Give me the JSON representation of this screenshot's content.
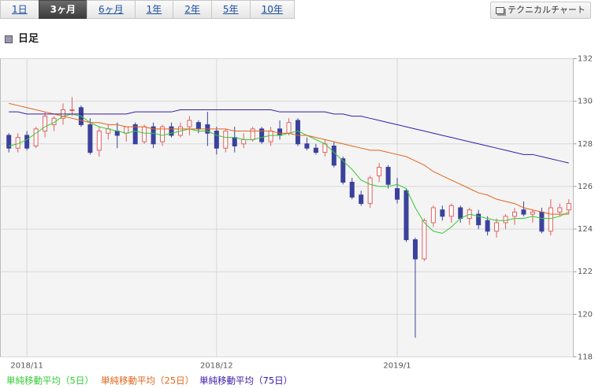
{
  "tabs": [
    {
      "label": "1日"
    },
    {
      "label": "3ヶ月",
      "active": true
    },
    {
      "label": "6ヶ月"
    },
    {
      "label": "1年"
    },
    {
      "label": "2年"
    },
    {
      "label": "5年"
    },
    {
      "label": "10年"
    }
  ],
  "button": "テクニカルチャート",
  "section_title": "日足",
  "chart_data": {
    "type": "candlestick",
    "categories": [
      null,
      null,
      "2018/11",
      null,
      null,
      null,
      null,
      null,
      null,
      null,
      null,
      null,
      null,
      null,
      null,
      null,
      null,
      null,
      null,
      null,
      null,
      null,
      null,
      "2018/12",
      null,
      null,
      null,
      null,
      null,
      null,
      null,
      null,
      null,
      null,
      null,
      null,
      null,
      null,
      null,
      null,
      null,
      null,
      null,
      "2019/1",
      null,
      null,
      null,
      null,
      null,
      null,
      null,
      null,
      null,
      null,
      null,
      null,
      null,
      null,
      null,
      null,
      null,
      null,
      null
    ],
    "open": [
      128.4,
      127.8,
      128.4,
      127.9,
      128.6,
      128.9,
      129.2,
      129.6,
      129.7,
      128.9,
      127.7,
      128.5,
      128.6,
      128.5,
      128.9,
      128.1,
      128.8,
      128.1,
      128.8,
      128.4,
      128.8,
      129.0,
      128.9,
      128.6,
      127.8,
      128.3,
      128.0,
      128.2,
      128.7,
      128.1,
      128.7,
      128.5,
      129.1,
      128.0,
      127.8,
      127.6,
      127.9,
      127.3,
      126.2,
      125.6,
      125.2,
      126.5,
      126.9,
      125.9,
      125.8,
      123.5,
      122.6,
      124.3,
      124.9,
      124.6,
      125.0,
      124.5,
      124.7,
      124.4,
      123.9,
      124.3,
      124.6,
      124.9,
      124.7,
      124.8,
      123.9,
      124.8,
      124.9
    ],
    "high": [
      128.5,
      128.5,
      128.6,
      128.8,
      129.5,
      129.3,
      129.9,
      130.2,
      129.8,
      129.2,
      128.8,
      128.9,
      129.0,
      128.8,
      129.0,
      128.9,
      129.0,
      128.9,
      129.0,
      129.0,
      129.3,
      129.1,
      129.5,
      128.8,
      128.7,
      128.8,
      128.5,
      128.8,
      128.8,
      128.8,
      129.1,
      129.2,
      129.2,
      128.3,
      128.0,
      128.2,
      128.1,
      127.4,
      126.4,
      125.8,
      126.5,
      127.1,
      127.0,
      126.4,
      125.9,
      123.6,
      124.5,
      125.1,
      125.1,
      125.2,
      125.1,
      125.0,
      124.9,
      124.6,
      124.5,
      124.7,
      125.0,
      125.3,
      124.9,
      125.0,
      125.4,
      125.2,
      125.4
    ],
    "low": [
      127.6,
      127.6,
      127.7,
      127.8,
      128.3,
      128.6,
      128.9,
      129.3,
      128.8,
      127.5,
      127.4,
      128.2,
      127.8,
      128.1,
      128.0,
      128.0,
      127.8,
      127.9,
      128.3,
      128.3,
      128.4,
      128.5,
      127.9,
      127.5,
      127.6,
      127.6,
      127.8,
      128.1,
      128.0,
      127.9,
      128.2,
      128.4,
      127.9,
      127.7,
      127.5,
      127.4,
      126.9,
      126.1,
      125.4,
      125.1,
      125.0,
      126.2,
      125.9,
      125.2,
      123.4,
      118.9,
      122.5,
      124.1,
      124.4,
      124.3,
      124.3,
      124.2,
      124.0,
      123.7,
      123.6,
      124.0,
      124.2,
      124.6,
      124.3,
      123.8,
      123.7,
      124.6,
      124.7
    ],
    "close": [
      127.8,
      128.3,
      127.8,
      128.7,
      129.3,
      129.2,
      129.6,
      129.6,
      128.9,
      127.6,
      128.6,
      128.7,
      128.4,
      128.8,
      128.0,
      128.8,
      128.0,
      128.8,
      128.4,
      128.8,
      129.1,
      128.7,
      128.5,
      127.8,
      128.6,
      127.9,
      128.2,
      128.7,
      128.1,
      128.6,
      128.4,
      129.0,
      128.0,
      127.8,
      127.6,
      128.0,
      127.0,
      126.2,
      125.5,
      125.2,
      126.4,
      126.9,
      126.1,
      125.4,
      123.5,
      122.6,
      124.4,
      125.0,
      124.6,
      125.1,
      124.5,
      124.9,
      124.2,
      123.9,
      124.3,
      124.6,
      124.8,
      124.7,
      124.8,
      123.9,
      125.0,
      125.0,
      125.2
    ],
    "up_color": "#e06060",
    "down_color": "#3b419c",
    "series": [
      {
        "name": "単純移動平均（5日）",
        "color": "#33cc33",
        "values": [
          127.9,
          128.0,
          128.2,
          128.5,
          128.8,
          129.0,
          129.3,
          129.4,
          129.3,
          129.0,
          128.8,
          128.7,
          128.6,
          128.5,
          128.6,
          128.5,
          128.5,
          128.4,
          128.5,
          128.6,
          128.7,
          128.6,
          128.6,
          128.4,
          128.3,
          128.3,
          128.2,
          128.2,
          128.3,
          128.4,
          128.4,
          128.5,
          128.6,
          128.4,
          128.2,
          128.0,
          127.6,
          127.2,
          126.8,
          126.3,
          126.1,
          126.0,
          126.0,
          126.1,
          125.9,
          125.0,
          124.3,
          123.9,
          123.8,
          124.1,
          124.5,
          124.7,
          124.6,
          124.5,
          124.4,
          124.4,
          124.5,
          124.5,
          124.6,
          124.5,
          124.5,
          124.6,
          124.8
        ]
      },
      {
        "name": "単純移動平均（25日）",
        "color": "#e0661a",
        "values": [
          129.9,
          129.8,
          129.7,
          129.6,
          129.5,
          129.4,
          129.3,
          129.2,
          129.1,
          129.0,
          129.0,
          128.9,
          128.9,
          128.8,
          128.8,
          128.8,
          128.7,
          128.7,
          128.7,
          128.7,
          128.7,
          128.7,
          128.7,
          128.7,
          128.7,
          128.6,
          128.6,
          128.6,
          128.6,
          128.6,
          128.5,
          128.5,
          128.4,
          128.4,
          128.3,
          128.2,
          128.1,
          128.0,
          127.9,
          127.8,
          127.7,
          127.7,
          127.6,
          127.5,
          127.4,
          127.2,
          127.0,
          126.7,
          126.5,
          126.3,
          126.1,
          125.9,
          125.7,
          125.6,
          125.4,
          125.3,
          125.2,
          125.0,
          124.9,
          124.8,
          124.7,
          124.7,
          124.7
        ]
      },
      {
        "name": "単純移動平均（75日）",
        "color": "#3a1aa8",
        "values": [
          129.5,
          129.5,
          129.4,
          129.4,
          129.4,
          129.4,
          129.4,
          129.4,
          129.4,
          129.4,
          129.4,
          129.4,
          129.4,
          129.4,
          129.5,
          129.5,
          129.5,
          129.5,
          129.5,
          129.6,
          129.6,
          129.6,
          129.6,
          129.6,
          129.6,
          129.6,
          129.6,
          129.6,
          129.6,
          129.6,
          129.5,
          129.5,
          129.5,
          129.5,
          129.5,
          129.5,
          129.4,
          129.4,
          129.3,
          129.3,
          129.2,
          129.1,
          129.0,
          128.9,
          128.8,
          128.7,
          128.6,
          128.5,
          128.4,
          128.3,
          128.2,
          128.1,
          128.0,
          127.9,
          127.8,
          127.7,
          127.6,
          127.5,
          127.5,
          127.4,
          127.3,
          127.2,
          127.1
        ]
      }
    ],
    "ylim": [
      118,
      132
    ],
    "yticks": [
      118,
      120,
      122,
      124,
      126,
      128,
      130,
      132
    ],
    "grid": true
  }
}
